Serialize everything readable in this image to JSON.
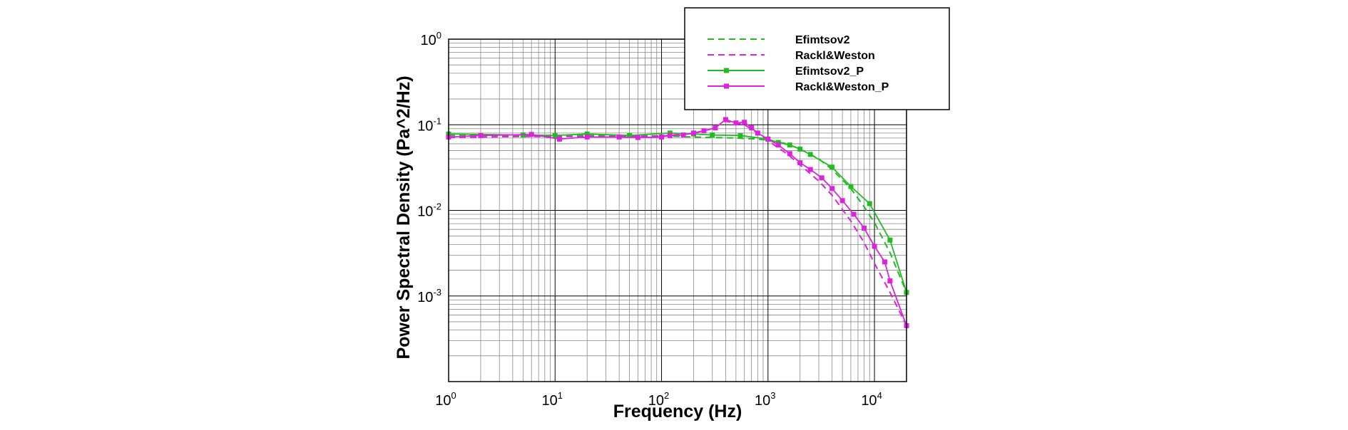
{
  "chart_data": {
    "type": "line",
    "xlabel": "Frequency (Hz)",
    "ylabel": "Power Spectral Density (Pa^2/Hz)",
    "x_scale": "log",
    "y_scale": "log",
    "xlim": [
      1,
      20000
    ],
    "ylim": [
      0.0001,
      1
    ],
    "grid": true,
    "legend_position": "top-right",
    "x_ticks": [
      {
        "value": 1,
        "base": "10",
        "exp": "0"
      },
      {
        "value": 10,
        "base": "10",
        "exp": "1"
      },
      {
        "value": 100,
        "base": "10",
        "exp": "2"
      },
      {
        "value": 1000,
        "base": "10",
        "exp": "3"
      },
      {
        "value": 10000,
        "base": "10",
        "exp": "4"
      }
    ],
    "y_ticks": [
      {
        "value": 0.001,
        "base": "10",
        "exp": "-3"
      },
      {
        "value": 0.01,
        "base": "10",
        "exp": "-2"
      },
      {
        "value": 0.1,
        "base": "10",
        "exp": "-1"
      },
      {
        "value": 1,
        "base": "10",
        "exp": "0"
      }
    ],
    "series": [
      {
        "name": "Efimtsov2",
        "color": "#22bb22",
        "style": "dashed",
        "markers": false,
        "x": [
          1,
          2,
          5,
          10,
          20,
          50,
          100,
          200,
          500,
          800,
          1000,
          1500,
          2000,
          3000,
          4000,
          6000,
          8000,
          10000,
          14000,
          20000
        ],
        "y": [
          0.075,
          0.075,
          0.075,
          0.075,
          0.075,
          0.075,
          0.074,
          0.072,
          0.07,
          0.068,
          0.066,
          0.06,
          0.052,
          0.04,
          0.03,
          0.018,
          0.011,
          0.0072,
          0.0032,
          0.0011
        ]
      },
      {
        "name": "Rackl&Weston",
        "color": "#dd22dd",
        "style": "dashed",
        "markers": false,
        "x": [
          1,
          2,
          5,
          10,
          20,
          50,
          100,
          200,
          300,
          400,
          600,
          800,
          1000,
          1500,
          2000,
          3000,
          4000,
          6000,
          8000,
          10000,
          14000,
          20000
        ],
        "y": [
          0.071,
          0.072,
          0.073,
          0.073,
          0.073,
          0.073,
          0.074,
          0.08,
          0.09,
          0.11,
          0.1,
          0.08,
          0.065,
          0.046,
          0.034,
          0.022,
          0.015,
          0.0075,
          0.0042,
          0.0024,
          0.0011,
          0.00045
        ]
      },
      {
        "name": "Efimtsov2_P",
        "color": "#22bb22",
        "style": "solid",
        "markers": true,
        "x": [
          1,
          5,
          10,
          20,
          50,
          120,
          200,
          300,
          550,
          1000,
          1250,
          1600,
          2000,
          2500,
          4000,
          6000,
          9000,
          14000,
          20000
        ],
        "y": [
          0.078,
          0.076,
          0.075,
          0.078,
          0.075,
          0.08,
          0.078,
          0.076,
          0.075,
          0.068,
          0.062,
          0.058,
          0.052,
          0.045,
          0.032,
          0.019,
          0.012,
          0.0045,
          0.0011
        ]
      },
      {
        "name": "Rackl&Weston_P",
        "color": "#dd22dd",
        "style": "solid",
        "markers": true,
        "x": [
          1,
          2,
          6,
          11,
          20,
          40,
          60,
          100,
          120,
          160,
          200,
          250,
          320,
          400,
          500,
          600,
          700,
          800,
          1000,
          1250,
          1600,
          2000,
          2500,
          3200,
          4000,
          5000,
          6400,
          8000,
          10000,
          12500,
          14000,
          20000
        ],
        "y": [
          0.072,
          0.075,
          0.077,
          0.068,
          0.072,
          0.072,
          0.071,
          0.072,
          0.075,
          0.076,
          0.08,
          0.085,
          0.092,
          0.115,
          0.105,
          0.107,
          0.092,
          0.08,
          0.068,
          0.058,
          0.046,
          0.036,
          0.03,
          0.024,
          0.018,
          0.013,
          0.009,
          0.0062,
          0.0038,
          0.0025,
          0.0015,
          0.00045
        ]
      }
    ]
  }
}
